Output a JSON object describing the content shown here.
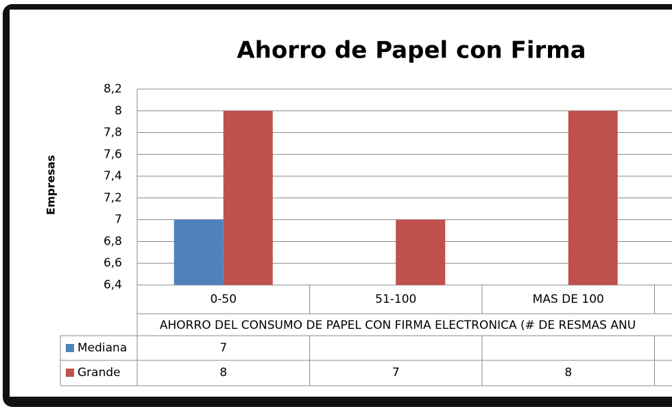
{
  "chart_data": {
    "type": "bar",
    "title": "Ahorro de Papel con Firma",
    "ylabel": "Empresas",
    "xlabel": "AHORRO DEL CONSUMO DE PAPEL CON FIRMA ELECTRONICA (# DE RESMAS ANU",
    "categories": [
      "0-50",
      "51-100",
      "MAS DE 100"
    ],
    "series": [
      {
        "name": "Mediana",
        "color": "#4f81bd",
        "values": [
          7,
          null,
          null
        ]
      },
      {
        "name": "Grande",
        "color": "#c0504d",
        "values": [
          8,
          7,
          8
        ]
      }
    ],
    "ylim": [
      6.4,
      8.2
    ],
    "yticks": [
      {
        "value": 6.4,
        "label": "6,4"
      },
      {
        "value": 6.6,
        "label": "6,6"
      },
      {
        "value": 6.8,
        "label": "6,8"
      },
      7,
      {
        "value": 7.2,
        "label": "7,2"
      },
      {
        "value": 7.4,
        "label": "7,4"
      },
      {
        "value": 7.6,
        "label": "7,6"
      },
      {
        "value": 7.8,
        "label": "7,8"
      },
      8,
      {
        "value": 8.2,
        "label": "8,2"
      }
    ],
    "grid": true,
    "data_table": true
  }
}
